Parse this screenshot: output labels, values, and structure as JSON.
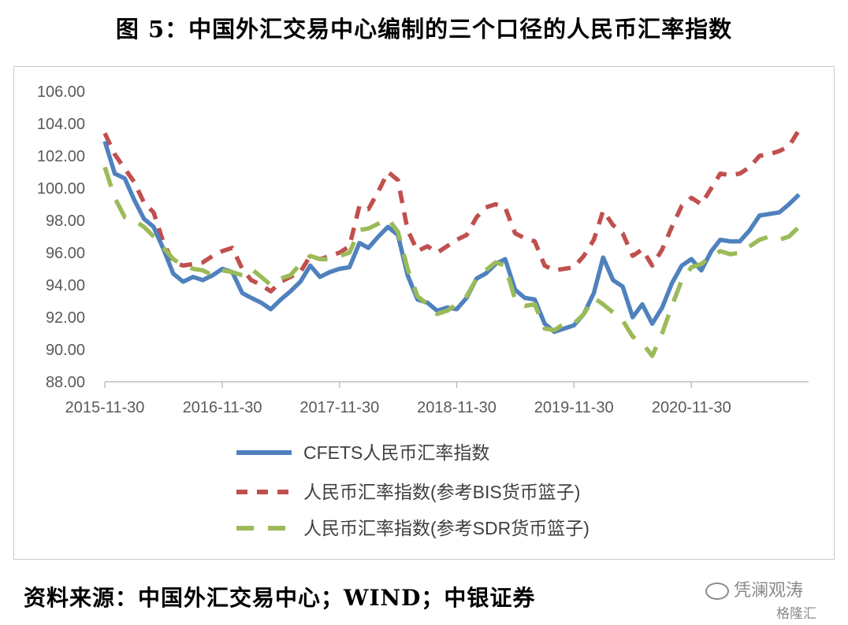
{
  "title": "图 5：中国外汇交易中心编制的三个口径的人民币汇率指数",
  "source": "资料来源：中国外汇交易中心；WIND；中银证券",
  "watermark": {
    "primary": "凭澜观涛",
    "secondary": "格隆汇"
  },
  "chart_data": {
    "type": "line",
    "title": "",
    "xlabel": "",
    "ylabel": "",
    "ylim": [
      88,
      106
    ],
    "yticks": [
      "106.00",
      "104.00",
      "102.00",
      "100.00",
      "98.00",
      "96.00",
      "94.00",
      "92.00",
      "90.00",
      "88.00"
    ],
    "xlim": [
      "2015-11-30",
      "2021-11-30"
    ],
    "xticks": [
      "2015-11-30",
      "2016-11-30",
      "2017-11-30",
      "2018-11-30",
      "2019-11-30",
      "2020-11-30"
    ],
    "grid": false,
    "legend_position": "bottom",
    "series": [
      {
        "name": "CFETS人民币汇率指数",
        "color": "#4f81bd",
        "style": "solid",
        "points": [
          [
            "2015-11-30",
            102.9
          ],
          [
            "2015-12-31",
            100.9
          ],
          [
            "2016-01-31",
            100.6
          ],
          [
            "2016-02-29",
            99.3
          ],
          [
            "2016-03-31",
            98.1
          ],
          [
            "2016-04-30",
            97.6
          ],
          [
            "2016-05-31",
            96.2
          ],
          [
            "2016-06-30",
            94.7
          ],
          [
            "2016-07-31",
            94.2
          ],
          [
            "2016-08-31",
            94.5
          ],
          [
            "2016-09-30",
            94.3
          ],
          [
            "2016-10-31",
            94.6
          ],
          [
            "2016-11-30",
            95.0
          ],
          [
            "2016-12-31",
            94.8
          ],
          [
            "2017-01-31",
            93.5
          ],
          [
            "2017-02-28",
            93.2
          ],
          [
            "2017-03-31",
            92.9
          ],
          [
            "2017-04-30",
            92.5
          ],
          [
            "2017-05-31",
            93.1
          ],
          [
            "2017-06-30",
            93.6
          ],
          [
            "2017-07-31",
            94.2
          ],
          [
            "2017-08-31",
            95.2
          ],
          [
            "2017-09-30",
            94.5
          ],
          [
            "2017-10-31",
            94.8
          ],
          [
            "2017-11-30",
            95.0
          ],
          [
            "2017-12-31",
            95.1
          ],
          [
            "2018-01-31",
            96.6
          ],
          [
            "2018-02-28",
            96.3
          ],
          [
            "2018-03-31",
            97.0
          ],
          [
            "2018-04-30",
            97.6
          ],
          [
            "2018-05-31",
            97.1
          ],
          [
            "2018-06-30",
            94.6
          ],
          [
            "2018-07-31",
            93.1
          ],
          [
            "2018-08-31",
            92.9
          ],
          [
            "2018-09-30",
            92.4
          ],
          [
            "2018-10-31",
            92.6
          ],
          [
            "2018-11-30",
            92.5
          ],
          [
            "2018-12-31",
            93.2
          ],
          [
            "2019-01-31",
            94.4
          ],
          [
            "2019-02-28",
            94.7
          ],
          [
            "2019-03-31",
            95.3
          ],
          [
            "2019-04-30",
            95.6
          ],
          [
            "2019-05-31",
            93.7
          ],
          [
            "2019-06-30",
            93.2
          ],
          [
            "2019-07-31",
            93.1
          ],
          [
            "2019-08-31",
            91.6
          ],
          [
            "2019-09-30",
            91.1
          ],
          [
            "2019-10-31",
            91.3
          ],
          [
            "2019-11-30",
            91.5
          ],
          [
            "2019-12-31",
            92.2
          ],
          [
            "2020-01-31",
            93.5
          ],
          [
            "2020-02-29",
            95.7
          ],
          [
            "2020-03-31",
            94.3
          ],
          [
            "2020-04-30",
            93.9
          ],
          [
            "2020-05-31",
            92.0
          ],
          [
            "2020-06-30",
            92.8
          ],
          [
            "2020-07-31",
            91.6
          ],
          [
            "2020-08-31",
            92.6
          ],
          [
            "2020-09-30",
            94.1
          ],
          [
            "2020-10-31",
            95.2
          ],
          [
            "2020-11-30",
            95.6
          ],
          [
            "2020-12-31",
            94.9
          ],
          [
            "2021-01-31",
            96.1
          ],
          [
            "2021-02-28",
            96.8
          ],
          [
            "2021-03-31",
            96.7
          ],
          [
            "2021-04-30",
            96.7
          ],
          [
            "2021-05-31",
            97.4
          ],
          [
            "2021-06-30",
            98.3
          ],
          [
            "2021-07-31",
            98.4
          ],
          [
            "2021-08-31",
            98.5
          ],
          [
            "2021-09-30",
            99.0
          ],
          [
            "2021-10-31",
            99.6
          ]
        ]
      },
      {
        "name": "人民币汇率指数(参考BIS货币篮子)",
        "color": "#c0504d",
        "style": "dashed",
        "points": [
          [
            "2015-11-30",
            103.4
          ],
          [
            "2015-12-31",
            102.1
          ],
          [
            "2016-01-31",
            101.2
          ],
          [
            "2016-02-29",
            100.4
          ],
          [
            "2016-03-31",
            99.1
          ],
          [
            "2016-04-30",
            98.5
          ],
          [
            "2016-05-31",
            96.6
          ],
          [
            "2016-06-30",
            95.4
          ],
          [
            "2016-07-31",
            95.2
          ],
          [
            "2016-08-31",
            95.3
          ],
          [
            "2016-09-30",
            95.4
          ],
          [
            "2016-10-31",
            95.8
          ],
          [
            "2016-11-30",
            96.1
          ],
          [
            "2016-12-31",
            96.3
          ],
          [
            "2017-01-31",
            95.0
          ],
          [
            "2017-02-28",
            94.3
          ],
          [
            "2017-03-31",
            94.0
          ],
          [
            "2017-04-30",
            93.6
          ],
          [
            "2017-05-31",
            94.2
          ],
          [
            "2017-06-30",
            94.5
          ],
          [
            "2017-07-31",
            94.8
          ],
          [
            "2017-08-31",
            95.8
          ],
          [
            "2017-09-30",
            95.6
          ],
          [
            "2017-10-31",
            95.8
          ],
          [
            "2017-11-30",
            96.0
          ],
          [
            "2017-12-31",
            96.4
          ],
          [
            "2018-01-31",
            98.9
          ],
          [
            "2018-02-28",
            98.7
          ],
          [
            "2018-03-31",
            99.8
          ],
          [
            "2018-04-30",
            101.0
          ],
          [
            "2018-05-31",
            100.5
          ],
          [
            "2018-06-30",
            97.4
          ],
          [
            "2018-07-31",
            96.1
          ],
          [
            "2018-08-31",
            96.4
          ],
          [
            "2018-09-30",
            96.0
          ],
          [
            "2018-10-31",
            96.4
          ],
          [
            "2018-11-30",
            96.8
          ],
          [
            "2018-12-31",
            97.1
          ],
          [
            "2019-01-31",
            98.2
          ],
          [
            "2019-02-28",
            98.8
          ],
          [
            "2019-03-31",
            99.0
          ],
          [
            "2019-04-30",
            98.8
          ],
          [
            "2019-05-31",
            97.2
          ],
          [
            "2019-06-30",
            96.9
          ],
          [
            "2019-07-31",
            96.7
          ],
          [
            "2019-08-31",
            95.2
          ],
          [
            "2019-09-30",
            94.9
          ],
          [
            "2019-10-31",
            95.0
          ],
          [
            "2019-11-30",
            95.1
          ],
          [
            "2019-12-31",
            95.8
          ],
          [
            "2020-01-31",
            96.8
          ],
          [
            "2020-02-29",
            98.6
          ],
          [
            "2020-03-31",
            97.7
          ],
          [
            "2020-04-30",
            97.2
          ],
          [
            "2020-05-31",
            95.8
          ],
          [
            "2020-06-30",
            96.2
          ],
          [
            "2020-07-31",
            95.2
          ],
          [
            "2020-08-31",
            96.2
          ],
          [
            "2020-09-30",
            97.6
          ],
          [
            "2020-10-31",
            98.9
          ],
          [
            "2020-11-30",
            99.4
          ],
          [
            "2020-12-31",
            99.0
          ],
          [
            "2021-01-31",
            100.0
          ],
          [
            "2021-02-28",
            100.9
          ],
          [
            "2021-03-31",
            100.8
          ],
          [
            "2021-04-30",
            100.9
          ],
          [
            "2021-05-31",
            101.3
          ],
          [
            "2021-06-30",
            102.0
          ],
          [
            "2021-07-31",
            102.1
          ],
          [
            "2021-08-31",
            102.3
          ],
          [
            "2021-09-30",
            102.6
          ],
          [
            "2021-10-31",
            103.6
          ]
        ]
      },
      {
        "name": "人民币汇率指数(参考SDR货币篮子)",
        "color": "#9bbb59",
        "style": "dashed",
        "points": [
          [
            "2015-11-30",
            101.3
          ],
          [
            "2015-12-31",
            99.4
          ],
          [
            "2016-01-31",
            98.2
          ],
          [
            "2016-02-29",
            98.0
          ],
          [
            "2016-03-31",
            97.6
          ],
          [
            "2016-04-30",
            97.0
          ],
          [
            "2016-05-31",
            96.3
          ],
          [
            "2016-06-30",
            95.6
          ],
          [
            "2016-07-31",
            95.2
          ],
          [
            "2016-08-31",
            95.0
          ],
          [
            "2016-09-30",
            94.9
          ],
          [
            "2016-10-31",
            94.6
          ],
          [
            "2016-11-30",
            94.9
          ],
          [
            "2016-12-31",
            94.8
          ],
          [
            "2017-01-31",
            94.6
          ],
          [
            "2017-02-28",
            95.0
          ],
          [
            "2017-03-31",
            94.5
          ],
          [
            "2017-04-30",
            94.0
          ],
          [
            "2017-05-31",
            94.4
          ],
          [
            "2017-06-30",
            94.6
          ],
          [
            "2017-07-31",
            95.3
          ],
          [
            "2017-08-31",
            95.8
          ],
          [
            "2017-09-30",
            95.6
          ],
          [
            "2017-10-31",
            95.6
          ],
          [
            "2017-11-30",
            95.8
          ],
          [
            "2017-12-31",
            96.0
          ],
          [
            "2018-01-31",
            97.4
          ],
          [
            "2018-02-28",
            97.5
          ],
          [
            "2018-03-31",
            97.8
          ],
          [
            "2018-04-30",
            98.1
          ],
          [
            "2018-05-31",
            97.3
          ],
          [
            "2018-06-30",
            95.0
          ],
          [
            "2018-07-31",
            93.3
          ],
          [
            "2018-08-31",
            92.8
          ],
          [
            "2018-09-30",
            92.2
          ],
          [
            "2018-10-31",
            92.4
          ],
          [
            "2018-11-30",
            92.8
          ],
          [
            "2018-12-31",
            93.3
          ],
          [
            "2019-01-31",
            94.4
          ],
          [
            "2019-02-28",
            94.9
          ],
          [
            "2019-03-31",
            95.4
          ],
          [
            "2019-04-30",
            95.2
          ],
          [
            "2019-05-31",
            93.1
          ],
          [
            "2019-06-30",
            92.7
          ],
          [
            "2019-07-31",
            92.8
          ],
          [
            "2019-08-31",
            91.3
          ],
          [
            "2019-09-30",
            91.2
          ],
          [
            "2019-10-31",
            91.6
          ],
          [
            "2019-11-30",
            91.6
          ],
          [
            "2019-12-31",
            92.2
          ],
          [
            "2020-01-31",
            93.2
          ],
          [
            "2020-02-29",
            92.8
          ],
          [
            "2020-03-31",
            92.3
          ],
          [
            "2020-04-30",
            91.8
          ],
          [
            "2020-05-31",
            90.8
          ],
          [
            "2020-06-30",
            90.4
          ],
          [
            "2020-07-31",
            89.6
          ],
          [
            "2020-08-31",
            91.0
          ],
          [
            "2020-09-30",
            92.7
          ],
          [
            "2020-10-31",
            94.3
          ],
          [
            "2020-11-30",
            95.1
          ],
          [
            "2020-12-31",
            95.3
          ],
          [
            "2021-01-31",
            95.8
          ],
          [
            "2021-02-28",
            96.1
          ],
          [
            "2021-03-31",
            95.9
          ],
          [
            "2021-04-30",
            96.0
          ],
          [
            "2021-05-31",
            96.4
          ],
          [
            "2021-06-30",
            96.8
          ],
          [
            "2021-07-31",
            97.0
          ],
          [
            "2021-08-31",
            96.8
          ],
          [
            "2021-09-30",
            97.0
          ],
          [
            "2021-10-31",
            97.6
          ]
        ]
      }
    ]
  }
}
